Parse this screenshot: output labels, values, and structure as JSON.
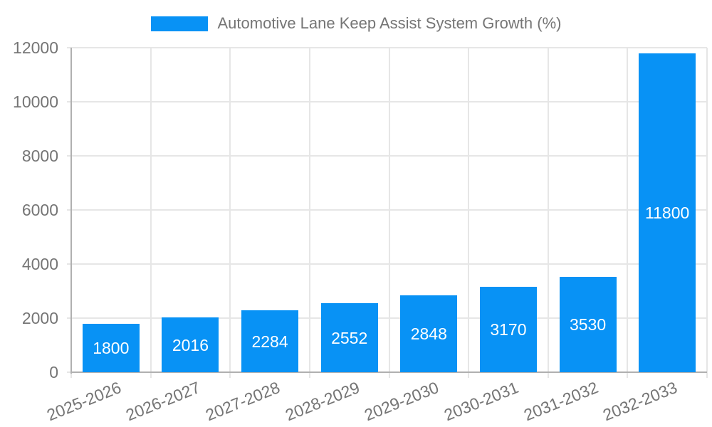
{
  "chart_data": {
    "type": "bar",
    "title": "Automotive Lane Keep Assist System Growth (%)",
    "legend_position": "top",
    "categories": [
      "2025-2026",
      "2026-2027",
      "2027-2028",
      "2028-2029",
      "2029-2030",
      "2030-2031",
      "2031-2032",
      "2032-2033"
    ],
    "values": [
      1800,
      2016,
      2284,
      2552,
      2848,
      3170,
      3530,
      11800
    ],
    "xlabel": "",
    "ylabel": "",
    "ylim": [
      0,
      12000
    ],
    "yticks": [
      0,
      2000,
      4000,
      6000,
      8000,
      10000,
      12000
    ],
    "grid": true,
    "x_label_rotation_deg": -22,
    "colors": {
      "bar": "#0892F5",
      "bar_label": "#FFFFFF",
      "axis_line": "#B0B0B0",
      "gridline": "#E6E6E6",
      "tick_text": "#757575",
      "title_text": "#757575",
      "background": "#FFFFFF"
    }
  }
}
